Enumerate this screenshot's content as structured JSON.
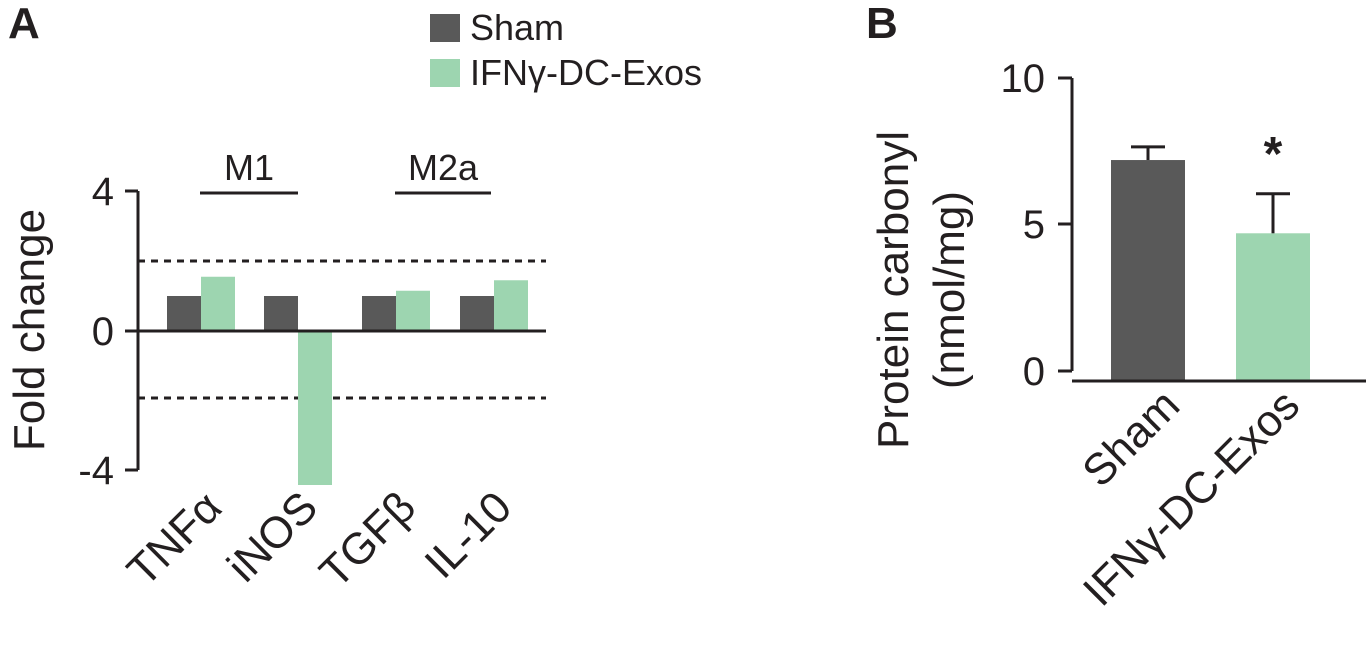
{
  "chart_data": [
    {
      "panel": "A",
      "type": "bar",
      "ylabel": "Fold change",
      "ylim": [
        -4,
        4
      ],
      "yticks": [
        "4",
        "0",
        "-4"
      ],
      "categories": [
        "TNFα",
        "iNOS",
        "TGFβ",
        "IL-10"
      ],
      "series": [
        {
          "name": "Sham",
          "values": [
            1,
            1,
            1,
            1
          ],
          "color": "#595959"
        },
        {
          "name": "IFNγ-DC-Exos",
          "values": [
            1.55,
            -4.4,
            1.15,
            1.45
          ],
          "color": "#9dd5b0"
        }
      ],
      "reference_lines": [
        2,
        -2
      ],
      "groups": [
        {
          "label": "M1",
          "categories": [
            "TNFα",
            "iNOS"
          ]
        },
        {
          "label": "M2a",
          "categories": [
            "TGFβ",
            "IL-10"
          ]
        }
      ],
      "legend": {
        "placement": "top-center",
        "entries": [
          "Sham",
          "IFNγ-DC-Exos"
        ]
      }
    },
    {
      "panel": "B",
      "type": "bar",
      "ylabel": "Protein carbonyl",
      "ylabel2": "(nmol/mg)",
      "ylim": [
        0,
        10
      ],
      "yticks": [
        "10",
        "5",
        "0"
      ],
      "categories": [
        "Sham",
        "IFNγ-DC-Exos"
      ],
      "values": [
        7.2,
        4.7
      ],
      "errors": [
        0.45,
        1.35
      ],
      "colors": [
        "#595959",
        "#9dd5b0"
      ],
      "significance": [
        "",
        "*"
      ]
    }
  ]
}
